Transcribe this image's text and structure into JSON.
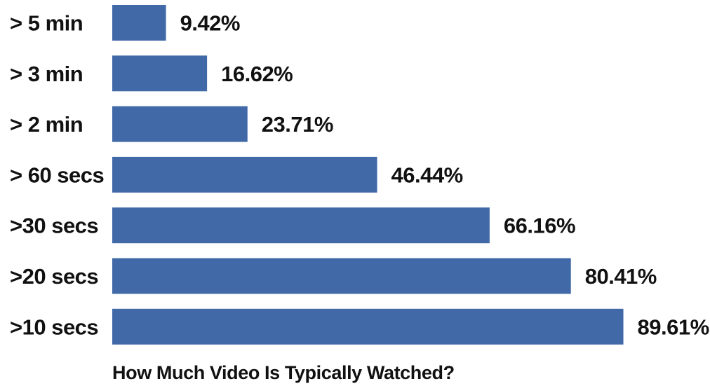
{
  "chart_data": {
    "type": "bar",
    "orientation": "horizontal",
    "title": "How Much Video Is Typically Watched?",
    "categories": [
      "> 5 min",
      "> 3 min",
      "> 2 min",
      "> 60 secs",
      ">30 secs",
      ">20 secs",
      ">10 secs"
    ],
    "values": [
      9.42,
      16.62,
      23.71,
      46.44,
      66.16,
      80.41,
      89.61
    ],
    "value_labels": [
      "9.42%",
      "16.62%",
      "23.71%",
      "46.44%",
      "66.16%",
      "80.41%",
      "89.61%"
    ],
    "unit": "%",
    "xlim": [
      0,
      100
    ],
    "grid": false,
    "legend": "none",
    "bar_color": "#4169a8"
  }
}
